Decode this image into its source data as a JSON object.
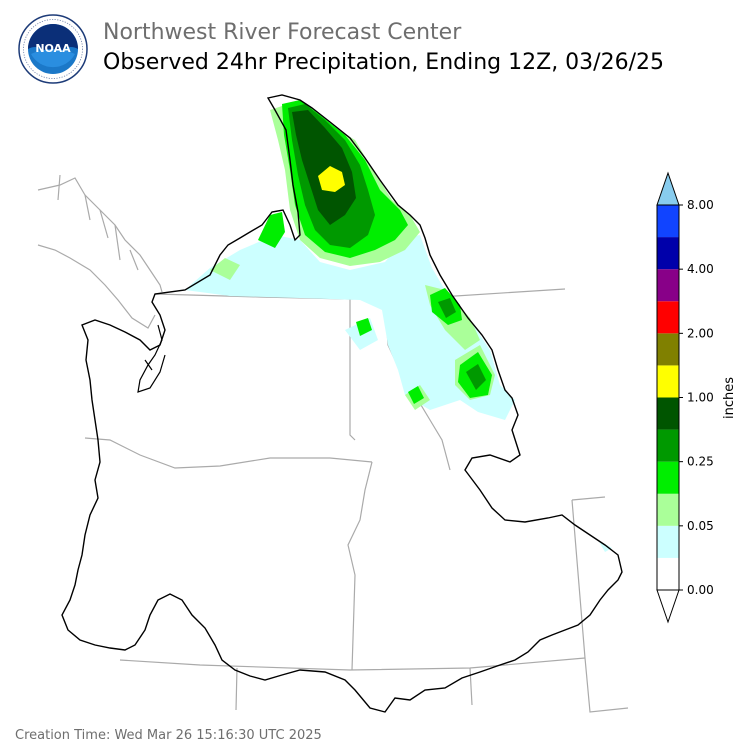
{
  "header": {
    "org": "Northwest River Forecast Center",
    "title": "Observed 24hr Precipitation, Ending 12Z, 03/26/25"
  },
  "logo": {
    "icon": "noaa-logo",
    "text": "NOAA"
  },
  "colorbar": {
    "unit": "inches",
    "ticks": [
      "0.00",
      "0.05",
      "0.25",
      "1.00",
      "2.00",
      "4.00",
      "8.00"
    ],
    "bins": [
      "#ffffff",
      "#ccffff",
      "#aaff99",
      "#00ee00",
      "#009900",
      "#005500",
      "#ffff00",
      "#808000",
      "#ff0000",
      "#880088",
      "#0000aa",
      "#1144ff"
    ],
    "under_color": "#ffffff",
    "over_color": "#88ccee"
  },
  "footer": {
    "creation": "Creation Time: Wed Mar 26 15:16:30 UTC 2025"
  }
}
